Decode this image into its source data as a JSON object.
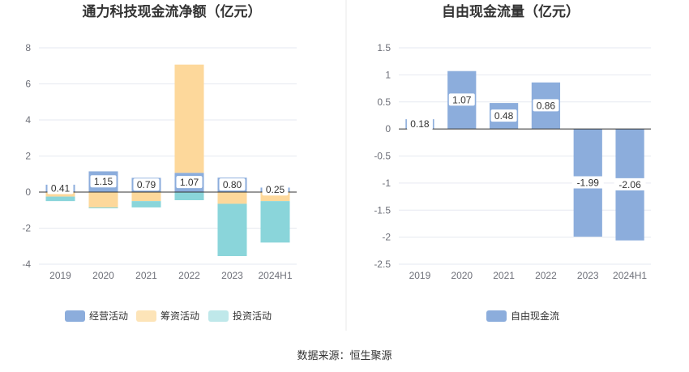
{
  "source_text": "数据来源：恒生聚源",
  "chart_data": [
    {
      "type": "bar",
      "stacked": true,
      "title": "通力科技现金流净额（亿元）",
      "categories": [
        "2019",
        "2020",
        "2021",
        "2022",
        "2023",
        "2024H1"
      ],
      "ylim": [
        -4,
        8
      ],
      "yticks": [
        "8",
        "6",
        "4",
        "2",
        "0",
        "-2",
        "-4"
      ],
      "legend_position": "bottom",
      "series": [
        {
          "name": "经营活动",
          "color": "#8caddc",
          "values": [
            0.41,
            1.15,
            0.79,
            1.07,
            0.8,
            0.25
          ]
        },
        {
          "name": "筹资活动",
          "color": "#fdd89b",
          "values": [
            -0.25,
            -0.85,
            -0.5,
            6.0,
            -0.65,
            -0.5
          ]
        },
        {
          "name": "投资活动",
          "color": "#8ad5da",
          "values": [
            -0.25,
            -0.05,
            -0.35,
            -0.45,
            -2.9,
            -2.3
          ]
        }
      ],
      "data_labels": [
        "0.41",
        "1.15",
        "0.79",
        "1.07",
        "0.80",
        "0.25"
      ]
    },
    {
      "type": "bar",
      "title": "自由现金流量（亿元）",
      "categories": [
        "2019",
        "2020",
        "2021",
        "2022",
        "2023",
        "2024H1"
      ],
      "ylim": [
        -2.5,
        1.5
      ],
      "yticks": [
        "1.5",
        "1",
        "0.5",
        "0",
        "-0.5",
        "-1",
        "-1.5",
        "-2",
        "-2.5"
      ],
      "legend_position": "bottom",
      "series": [
        {
          "name": "自由现金流",
          "color": "#8caddc",
          "values": [
            0.18,
            1.07,
            0.48,
            0.86,
            -1.99,
            -2.06
          ]
        }
      ],
      "data_labels": [
        "0.18",
        "1.07",
        "0.48",
        "0.86",
        "-1.99",
        "-2.06"
      ]
    }
  ]
}
